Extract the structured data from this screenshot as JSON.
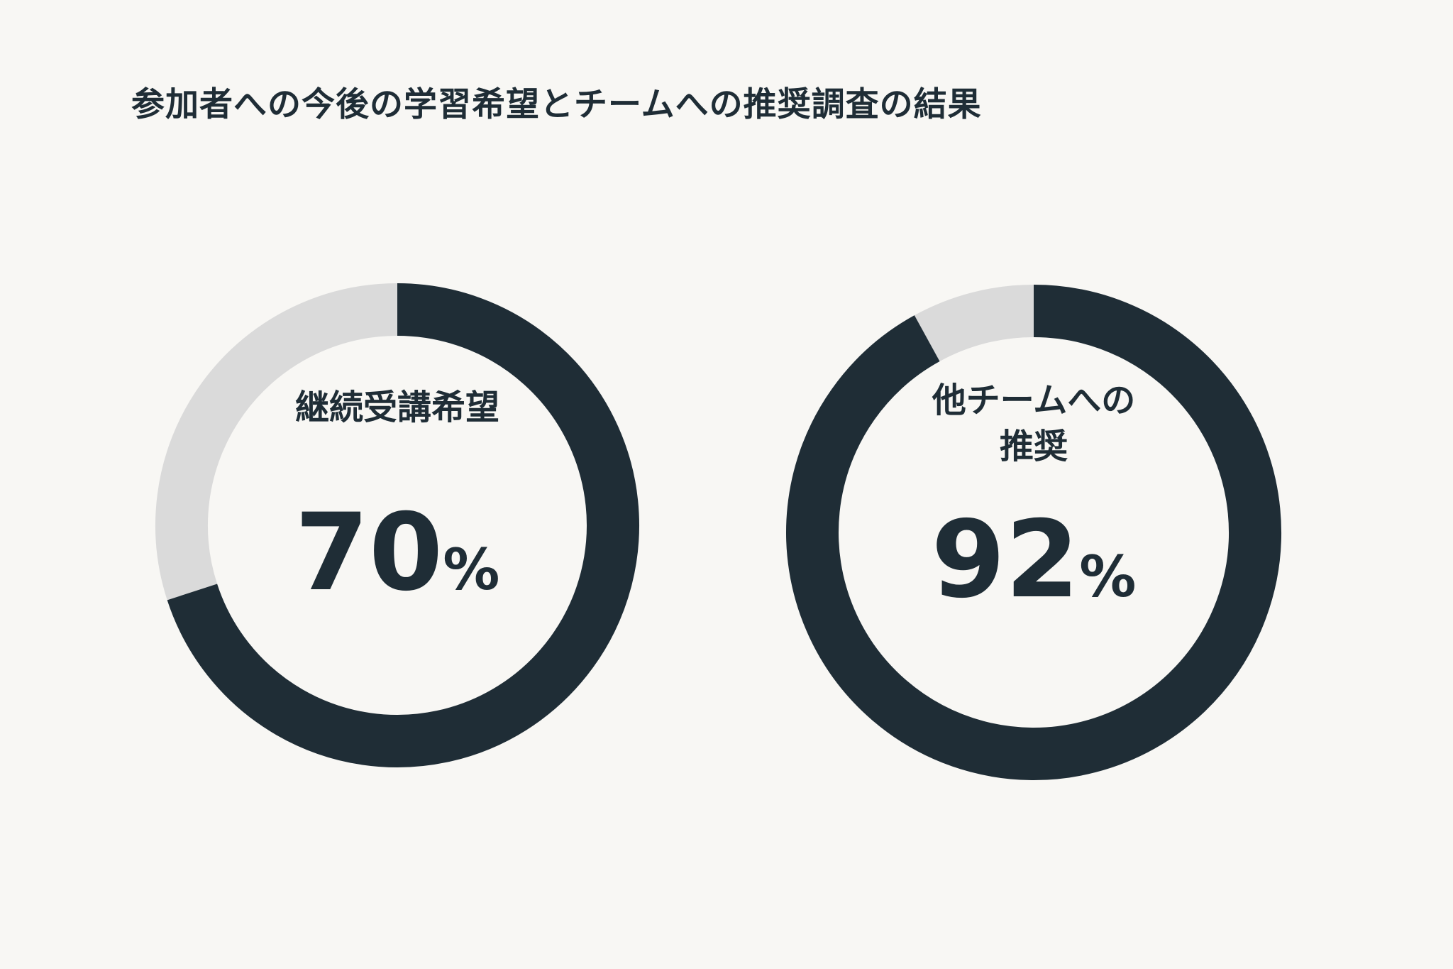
{
  "title": "参加者への今後の学習希望とチームへの推奨調査の結果",
  "colors": {
    "background": "#f8f7f4",
    "filled": "#1f2d36",
    "remainder": "#dadada",
    "text": "#1f2d36"
  },
  "chart_data": [
    {
      "type": "pie",
      "label_lines": [
        "継続受講希望"
      ],
      "value": 70,
      "max": 100,
      "value_text": "70",
      "unit": "%"
    },
    {
      "type": "pie",
      "label_lines": [
        "他チームへの",
        "推奨"
      ],
      "value": 92,
      "max": 100,
      "value_text": "92",
      "unit": "%"
    }
  ]
}
